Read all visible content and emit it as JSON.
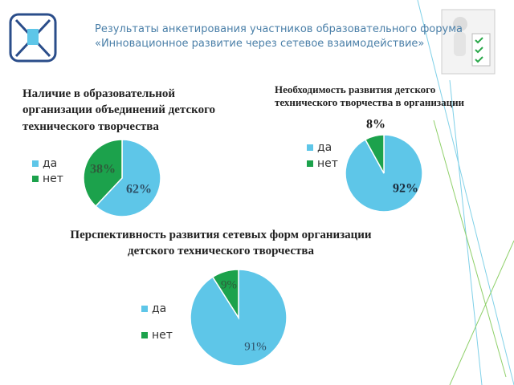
{
  "header": {
    "title_lines": [
      "Результаты анкетирования участников  образовательного форума",
      "«Инновационное развитие через сетевое взаимодействие»"
    ]
  },
  "chart_data": [
    {
      "type": "pie",
      "title": "Наличие в образовательной организации объединений детского технического творчества",
      "categories": [
        "да",
        "нет"
      ],
      "values": [
        62,
        38
      ],
      "value_labels": [
        "62%",
        "38%"
      ],
      "colors": [
        "#5ec6e8",
        "#1ca24c"
      ]
    },
    {
      "type": "pie",
      "title": "Необходимость развития детского технического творчества в организации",
      "categories": [
        "да",
        "нет"
      ],
      "values": [
        92,
        8
      ],
      "value_labels": [
        "92%",
        "8%"
      ],
      "colors": [
        "#5ec6e8",
        "#1ca24c"
      ]
    },
    {
      "type": "pie",
      "title": "Перспективность развития сетевых форм организации детского технического творчества",
      "categories": [
        "да",
        "нет"
      ],
      "values": [
        91,
        9
      ],
      "value_labels": [
        "91%",
        "9%"
      ],
      "colors": [
        "#5ec6e8",
        "#1ca24c"
      ]
    }
  ]
}
